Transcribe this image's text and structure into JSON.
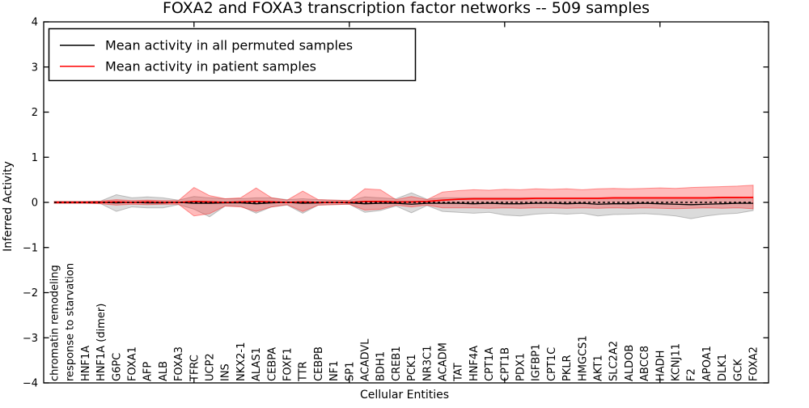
{
  "chart_data": {
    "type": "line",
    "title": "FOXA2 and FOXA3 transcription factor networks -- 509 samples",
    "xlabel": "Cellular Entities",
    "ylabel": "Inferred Activity",
    "ylim": [
      -4,
      4
    ],
    "yticks": [
      -4,
      -3,
      -2,
      -1,
      0,
      1,
      2,
      3,
      4
    ],
    "xticks_top_indices": [
      10,
      20,
      30,
      40
    ],
    "grid": false,
    "legend_position": "upper left",
    "zero_line": true,
    "categories": [
      "chromatin remodeling",
      "response to starvation",
      "HNF1A",
      "HNF1A (dimer)",
      "G6PC",
      "FOXA1",
      "AFP",
      "ALB",
      "FOXA3",
      "TFRC",
      "UCP2",
      "INS",
      "NKX2-1",
      "ALAS1",
      "CEBPA",
      "FOXF1",
      "TTR",
      "CEBPB",
      "NF1",
      "SP1",
      "ACADVL",
      "BDH1",
      "CREB1",
      "PCK1",
      "NR3C1",
      "ACADM",
      "TAT",
      "HNF4A",
      "CPT1A",
      "CPT1B",
      "PDX1",
      "IGFBP1",
      "CPT1C",
      "PKLR",
      "HMGCS1",
      "AKT1",
      "SLC2A2",
      "ALDOB",
      "ABCC8",
      "HADH",
      "KCNJ11",
      "F2",
      "APOA1",
      "DLK1",
      "GCK",
      "FOXA2"
    ],
    "series": [
      {
        "name": "Mean activity in all permuted samples",
        "color": "#000000",
        "values": [
          0,
          0,
          0,
          0,
          -0.01,
          0,
          -0.01,
          -0.01,
          0,
          -0.02,
          -0.02,
          -0.01,
          -0.01,
          -0.03,
          -0.01,
          0,
          -0.02,
          -0.01,
          0,
          -0.01,
          -0.03,
          -0.02,
          -0.02,
          -0.04,
          -0.02,
          -0.02,
          -0.02,
          -0.03,
          -0.02,
          -0.03,
          -0.03,
          -0.02,
          -0.02,
          -0.03,
          -0.02,
          -0.04,
          -0.03,
          -0.03,
          -0.02,
          -0.03,
          -0.04,
          -0.05,
          -0.04,
          -0.03,
          -0.02,
          -0.02
        ]
      },
      {
        "name": "Mean activity in patient samples",
        "color": "#ff0000",
        "values": [
          0,
          0,
          0,
          0,
          0.01,
          0,
          0.01,
          0,
          0,
          0.02,
          0.01,
          0,
          0.01,
          0.02,
          0.01,
          0,
          0.01,
          0,
          0,
          0,
          0.02,
          0.02,
          0.01,
          0.01,
          0.02,
          0.05,
          0.07,
          0.08,
          0.08,
          0.08,
          0.08,
          0.09,
          0.09,
          0.09,
          0.09,
          0.09,
          0.1,
          0.1,
          0.1,
          0.1,
          0.1,
          0.1,
          0.1,
          0.11,
          0.11,
          0.11
        ]
      }
    ],
    "bands": [
      {
        "name": "permuted-samples-range",
        "fill": "rgba(125,125,125,0.28)",
        "edge": "rgba(125,125,125,0.45)",
        "high": [
          0.02,
          0.02,
          0.02,
          0.03,
          0.17,
          0.1,
          0.12,
          0.1,
          0.05,
          0.13,
          0.1,
          0.08,
          0.08,
          0.1,
          0.1,
          0.06,
          0.08,
          0.06,
          0.05,
          0.04,
          0.12,
          0.1,
          0.08,
          0.21,
          0.07,
          0.1,
          0.1,
          0.1,
          0.1,
          0.1,
          0.1,
          0.1,
          0.1,
          0.1,
          0.1,
          0.1,
          0.1,
          0.1,
          0.1,
          0.1,
          0.1,
          0.1,
          0.1,
          0.1,
          0.1,
          0.12
        ],
        "low": [
          -0.02,
          -0.02,
          -0.02,
          -0.03,
          -0.2,
          -0.1,
          -0.12,
          -0.12,
          -0.05,
          -0.15,
          -0.32,
          -0.08,
          -0.08,
          -0.24,
          -0.1,
          -0.06,
          -0.24,
          -0.06,
          -0.05,
          -0.04,
          -0.22,
          -0.18,
          -0.08,
          -0.23,
          -0.07,
          -0.2,
          -0.22,
          -0.24,
          -0.22,
          -0.28,
          -0.3,
          -0.26,
          -0.24,
          -0.26,
          -0.24,
          -0.3,
          -0.27,
          -0.26,
          -0.25,
          -0.27,
          -0.3,
          -0.36,
          -0.3,
          -0.26,
          -0.24,
          -0.18
        ]
      },
      {
        "name": "patient-samples-range",
        "fill": "rgba(255,30,30,0.30)",
        "edge": "rgba(255,30,30,0.45)",
        "high": [
          0.02,
          0.02,
          0.02,
          0.03,
          0.06,
          0.04,
          0.05,
          0.04,
          0.04,
          0.33,
          0.15,
          0.08,
          0.1,
          0.32,
          0.1,
          0.05,
          0.25,
          0.06,
          0.05,
          0.04,
          0.3,
          0.28,
          0.06,
          0.13,
          0.06,
          0.23,
          0.26,
          0.28,
          0.27,
          0.29,
          0.28,
          0.3,
          0.29,
          0.3,
          0.28,
          0.3,
          0.31,
          0.3,
          0.31,
          0.32,
          0.31,
          0.33,
          0.34,
          0.35,
          0.36,
          0.38
        ],
        "low": [
          -0.02,
          -0.02,
          -0.02,
          -0.03,
          -0.06,
          -0.04,
          -0.05,
          -0.04,
          -0.04,
          -0.3,
          -0.25,
          -0.08,
          -0.1,
          -0.2,
          -0.1,
          -0.05,
          -0.2,
          -0.06,
          -0.05,
          -0.04,
          -0.17,
          -0.15,
          -0.06,
          -0.1,
          -0.06,
          -0.12,
          -0.12,
          -0.12,
          -0.13,
          -0.12,
          -0.13,
          -0.12,
          -0.12,
          -0.13,
          -0.12,
          -0.13,
          -0.12,
          -0.13,
          -0.12,
          -0.13,
          -0.14,
          -0.13,
          -0.12,
          -0.13,
          -0.12,
          -0.14
        ]
      }
    ],
    "legend": [
      {
        "label": "Mean activity in all permuted samples",
        "color": "#000000"
      },
      {
        "label": "Mean activity in patient samples",
        "color": "#ff0000"
      }
    ]
  }
}
